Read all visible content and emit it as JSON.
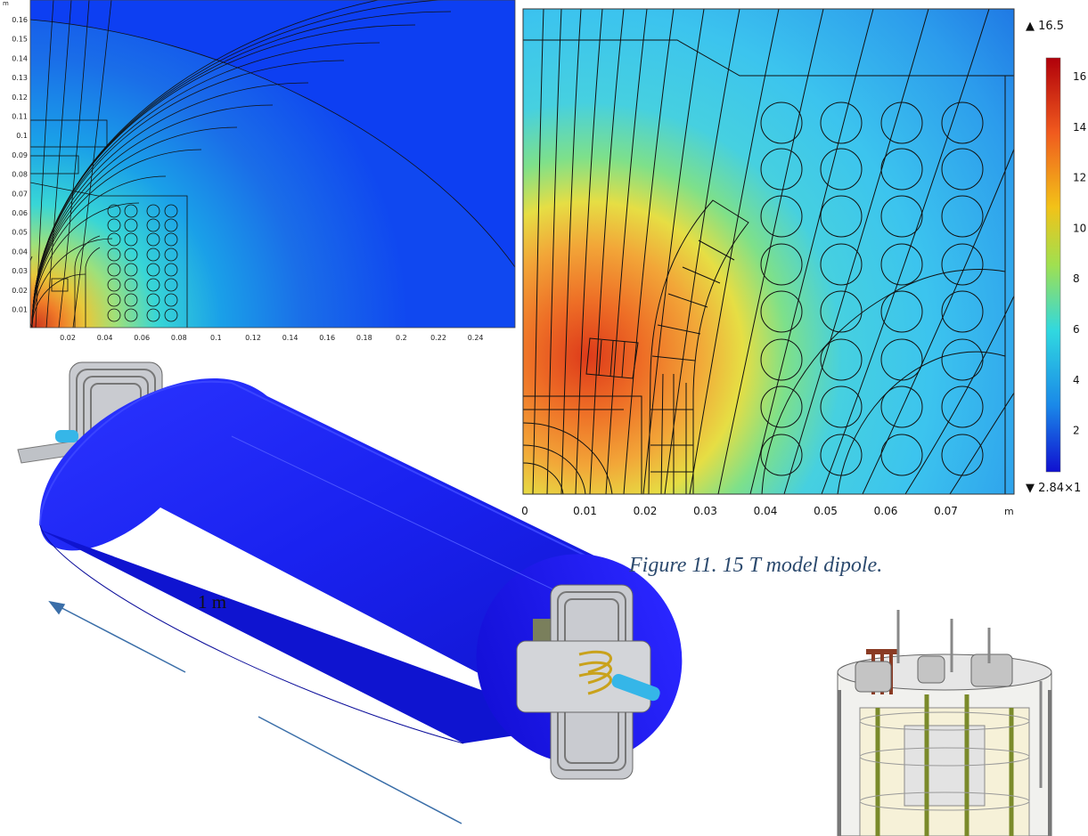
{
  "figure": {
    "caption": "Figure 11. 15 T model dipole.",
    "scale_bar_label": "1 m"
  },
  "plot_overview": {
    "unit": "m",
    "x_ticks": [
      "0.02",
      "0.04",
      "0.06",
      "0.08",
      "0.1",
      "0.12",
      "0.14",
      "0.16",
      "0.18",
      "0.2",
      "0.22",
      "0.24"
    ],
    "y_ticks": [
      "0.16",
      "0.15",
      "0.14",
      "0.13",
      "0.12",
      "0.11",
      "0.1",
      "0.09",
      "0.08",
      "0.07",
      "0.06",
      "0.05",
      "0.04",
      "0.03",
      "0.02",
      "0.01"
    ]
  },
  "plot_zoom": {
    "unit": "m",
    "x_ticks": [
      "0",
      "0.01",
      "0.02",
      "0.03",
      "0.04",
      "0.05",
      "0.06",
      "0.07"
    ],
    "colorbar": {
      "max_label": "▲ 16.5",
      "min_label": "▼ 2.84×1",
      "ticks": [
        "16",
        "14",
        "12",
        "10",
        "8",
        "6",
        "4",
        "2"
      ]
    }
  }
}
